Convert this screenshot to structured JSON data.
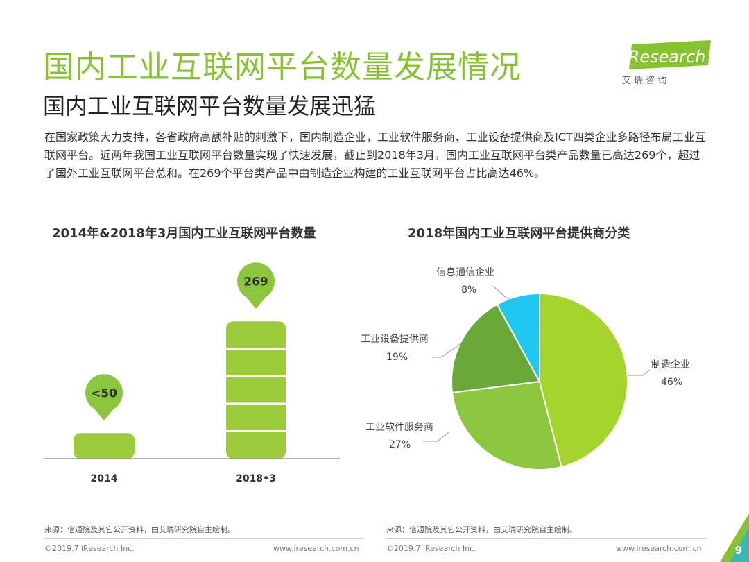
{
  "header": {
    "title": "国内工业互联网平台数量发展情况",
    "subtitle": "国内工业互联网平台数量发展迅猛",
    "logo_text": "iResearch",
    "logo_sub": "艾 瑞 咨 询"
  },
  "intro_text": "在国家政策大力支持，各省政府高额补贴的刺激下，国内制造企业，工业软件服务商、工业设备提供商及ICT四类企业多路径布局工业互联网平台。近两年我国工业互联网平台数量实现了快速发展，截止到2018年3月，国内工业互联网平台类产品数量已高达269个，超过了国外工业互联网平台总和。在269个平台类产品中由制造企业构建的工业互联网平台占比高达46%。",
  "chart_data": [
    {
      "type": "bar",
      "title": "2014年&2018年3月国内工业互联网平台数量",
      "categories": [
        "2014",
        "2018•3"
      ],
      "values": [
        50,
        269
      ],
      "data_labels": [
        "<50",
        "269"
      ],
      "colors": {
        "bar": "#9ccc3c",
        "pin": "#8cc63f"
      }
    },
    {
      "type": "pie",
      "title": "2018年国内工业互联网平台提供商分类",
      "labels": [
        "制造企业",
        "工业软件服务商",
        "工业设备提供商",
        "信息通信企业"
      ],
      "values": [
        46,
        27,
        19,
        8
      ],
      "value_labels": [
        "46%",
        "27%",
        "19%",
        "8%"
      ],
      "colors": [
        "#a6d42e",
        "#8cc63f",
        "#6aa83a",
        "#1fc8f0"
      ]
    }
  ],
  "footer": {
    "source_left": "来源：信通院及其它公开资料，由艾瑞研究院自主绘制。",
    "source_right": "来源：信通院及其它公开资料，由艾瑞研究院自主绘制。",
    "copyright_left": "©2019.7 iResearch Inc.",
    "url_left": "www.iresearch.com.cn",
    "copyright_right": "©2019.7 iResearch Inc.",
    "url_right": "www.iresearch.com.cn",
    "page_number": "9"
  },
  "colors": {
    "accent": "#86c232",
    "divider": "#cfcfcf"
  }
}
